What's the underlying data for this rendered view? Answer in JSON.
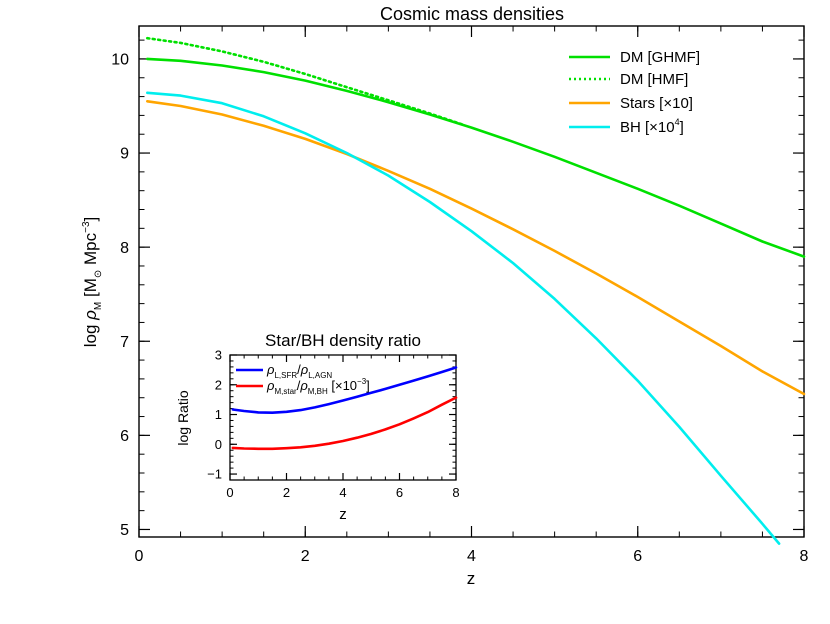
{
  "chart_data": [
    {
      "type": "line",
      "title": "Cosmic mass densities",
      "xlabel": "z",
      "ylabel_base": "log ",
      "ylabel_rho": "ρ",
      "ylabel_sub": "M",
      "ylabel_units": " [M",
      "ylabel_sun": "⊙",
      "ylabel_mpc": " Mpc",
      "ylabel_exp": "−3",
      "ylabel_close": "]",
      "xlim": [
        0,
        8
      ],
      "ylim": [
        4.92,
        10.35
      ],
      "xticks": [
        0,
        2,
        4,
        6,
        8
      ],
      "xtick_labels": [
        "0",
        "2",
        "4",
        "6",
        "8"
      ],
      "yticks": [
        5,
        6,
        7,
        8,
        9,
        10
      ],
      "ytick_labels": [
        "5",
        "6",
        "7",
        "8",
        "9",
        "10"
      ],
      "legend_position": "top-right",
      "series": [
        {
          "name": "DM [GHMF]",
          "color": "#00e000",
          "style": "solid",
          "x": [
            0.1,
            0.5,
            1.0,
            1.5,
            2.0,
            2.5,
            3.0,
            3.5,
            4.0,
            4.5,
            5.0,
            5.5,
            6.0,
            6.5,
            7.0,
            7.5,
            8.0
          ],
          "y": [
            10.0,
            9.98,
            9.93,
            9.86,
            9.77,
            9.66,
            9.54,
            9.41,
            9.27,
            9.12,
            8.96,
            8.79,
            8.62,
            8.44,
            8.25,
            8.06,
            7.9
          ]
        },
        {
          "name": "DM [HMF]",
          "color": "#00e000",
          "style": "dotted",
          "x": [
            0.1,
            0.5,
            1.0,
            1.5,
            2.0,
            2.5,
            3.0,
            3.5,
            3.9
          ],
          "y": [
            10.22,
            10.17,
            10.08,
            9.97,
            9.84,
            9.7,
            9.56,
            9.42,
            9.3
          ]
        },
        {
          "name": "Stars [×10]",
          "name_base": "Stars [×10]",
          "color": "#ffa500",
          "style": "solid",
          "x": [
            0.1,
            0.5,
            1.0,
            1.5,
            2.0,
            2.5,
            3.0,
            3.5,
            4.0,
            4.5,
            5.0,
            5.5,
            6.0,
            6.5,
            7.0,
            7.5,
            8.0
          ],
          "y": [
            9.55,
            9.5,
            9.41,
            9.29,
            9.15,
            8.99,
            8.81,
            8.62,
            8.41,
            8.19,
            7.96,
            7.72,
            7.47,
            7.21,
            6.95,
            6.68,
            6.44
          ]
        },
        {
          "name": "BH [×10⁴]",
          "name_base": "BH [×10",
          "name_exp": "4",
          "name_close": "]",
          "color": "#00eeee",
          "style": "solid",
          "x": [
            0.1,
            0.5,
            1.0,
            1.5,
            2.0,
            2.5,
            3.0,
            3.5,
            4.0,
            4.5,
            5.0,
            5.5,
            6.0,
            6.5,
            7.0,
            7.5,
            7.7
          ],
          "y": [
            9.64,
            9.61,
            9.53,
            9.39,
            9.21,
            9.0,
            8.76,
            8.48,
            8.17,
            7.83,
            7.45,
            7.03,
            6.58,
            6.09,
            5.57,
            5.06,
            4.85
          ]
        }
      ]
    },
    {
      "type": "line",
      "title": "Star/BH density ratio",
      "xlabel": "z",
      "ylabel": "log Ratio",
      "xlim": [
        0,
        8
      ],
      "ylim": [
        -1.2,
        3.0
      ],
      "xticks": [
        0,
        2,
        4,
        6,
        8
      ],
      "xtick_labels": [
        "0",
        "2",
        "4",
        "6",
        "8"
      ],
      "yticks": [
        -1,
        0,
        1,
        2,
        3
      ],
      "ytick_labels": [
        "−1",
        "0",
        "1",
        "2",
        "3"
      ],
      "legend_position": "top-left",
      "series": [
        {
          "name": "ρL,SFR/ρL,AGN",
          "label_rho": "ρ",
          "label_sub1": "L,SFR",
          "label_slash": "/",
          "label_sub2": "L,AGN",
          "color": "#0000ff",
          "x": [
            0.1,
            0.5,
            1.0,
            1.5,
            2.0,
            2.5,
            3.0,
            3.5,
            4.0,
            4.5,
            5.0,
            5.5,
            6.0,
            6.5,
            7.0,
            7.5,
            8.0
          ],
          "y": [
            1.17,
            1.12,
            1.07,
            1.06,
            1.09,
            1.15,
            1.24,
            1.35,
            1.47,
            1.6,
            1.73,
            1.86,
            2.0,
            2.14,
            2.28,
            2.43,
            2.58
          ]
        },
        {
          "name": "ρM,star/ρM,BH [×10⁻³]",
          "label_rho": "ρ",
          "label_sub1": "M,star",
          "label_slash": "/",
          "label_sub2": "M,BH",
          "label_tail": " [×10",
          "label_exp": "−3",
          "label_close": "]",
          "color": "#ff0000",
          "x": [
            0.1,
            0.5,
            1.0,
            1.5,
            2.0,
            2.5,
            3.0,
            3.5,
            4.0,
            4.5,
            5.0,
            5.5,
            6.0,
            6.5,
            7.0,
            7.5,
            8.0
          ],
          "y": [
            -0.12,
            -0.14,
            -0.15,
            -0.15,
            -0.13,
            -0.1,
            -0.05,
            0.02,
            0.11,
            0.22,
            0.35,
            0.5,
            0.67,
            0.87,
            1.08,
            1.33,
            1.57
          ]
        }
      ]
    }
  ]
}
